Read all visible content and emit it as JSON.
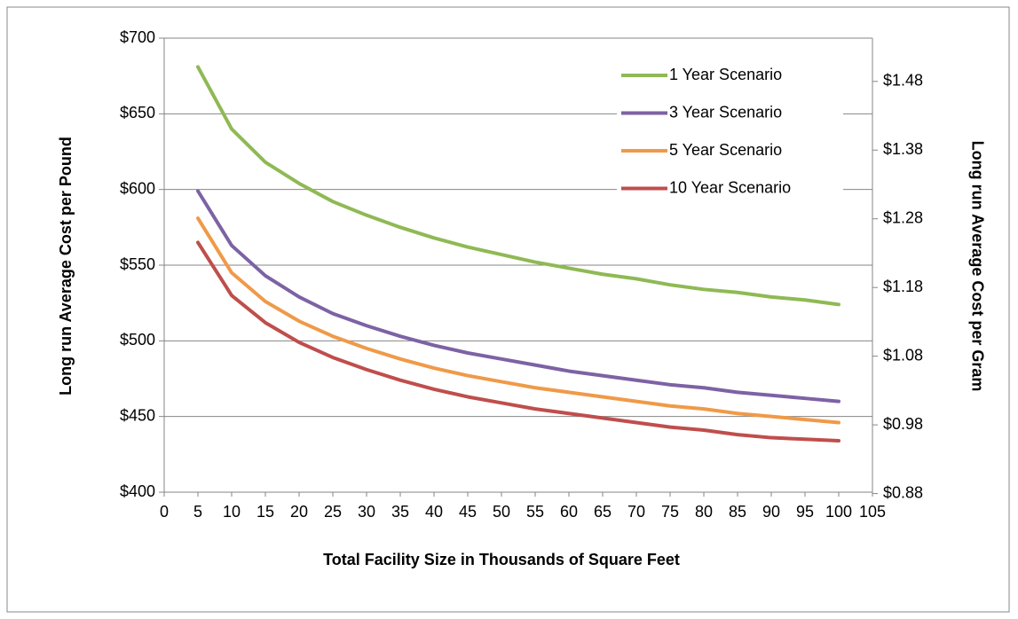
{
  "chart_data": {
    "type": "line",
    "x_label": "Total Facility Size in Thousands of Square Feet",
    "y_label": "Long run Average Cost per Pound",
    "y2_label": "Long run Average Cost per Gram",
    "x": [
      5,
      10,
      15,
      20,
      25,
      30,
      35,
      40,
      45,
      50,
      55,
      60,
      65,
      70,
      75,
      80,
      85,
      90,
      95,
      100
    ],
    "series": [
      {
        "name": "1 Year Scenario",
        "color": "#8fb954",
        "values": [
          681,
          640,
          618,
          604,
          592,
          583,
          575,
          568,
          562,
          557,
          552,
          548,
          544,
          541,
          537,
          534,
          532,
          529,
          527,
          524
        ]
      },
      {
        "name": "3 Year Scenario",
        "color": "#7d62a4",
        "values": [
          599,
          563,
          543,
          529,
          518,
          510,
          503,
          497,
          492,
          488,
          484,
          480,
          477,
          474,
          471,
          469,
          466,
          464,
          462,
          460
        ]
      },
      {
        "name": "5 Year Scenario",
        "color": "#ef9a48",
        "values": [
          581,
          545,
          526,
          513,
          503,
          495,
          488,
          482,
          477,
          473,
          469,
          466,
          463,
          460,
          457,
          455,
          452,
          450,
          448,
          446
        ]
      },
      {
        "name": "10 Year Scenario",
        "color": "#bf4e4c",
        "values": [
          565,
          530,
          512,
          499,
          489,
          481,
          474,
          468,
          463,
          459,
          455,
          452,
          449,
          446,
          443,
          441,
          438,
          436,
          435,
          434
        ]
      }
    ],
    "xlim": [
      0,
      105
    ],
    "xticks": [
      0,
      5,
      10,
      15,
      20,
      25,
      30,
      35,
      40,
      45,
      50,
      55,
      60,
      65,
      70,
      75,
      80,
      85,
      90,
      95,
      100,
      105
    ],
    "ylim": [
      400,
      700
    ],
    "yticks": [
      {
        "value": 400,
        "label": "$400"
      },
      {
        "value": 450,
        "label": "$450"
      },
      {
        "value": 500,
        "label": "$500"
      },
      {
        "value": 550,
        "label": "$550"
      },
      {
        "value": 600,
        "label": "$600"
      },
      {
        "value": 650,
        "label": "$650"
      },
      {
        "value": 700,
        "label": "$700"
      }
    ],
    "y2lim": [
      0.882,
      1.543
    ],
    "y2ticks": [
      {
        "value": 0.88,
        "label": "$0.88"
      },
      {
        "value": 0.98,
        "label": "$0.98"
      },
      {
        "value": 1.08,
        "label": "$1.08"
      },
      {
        "value": 1.18,
        "label": "$1.18"
      },
      {
        "value": 1.28,
        "label": "$1.28"
      },
      {
        "value": 1.38,
        "label": "$1.38"
      },
      {
        "value": 1.48,
        "label": "$1.48"
      }
    ],
    "grid": true,
    "legend": "upper right"
  }
}
